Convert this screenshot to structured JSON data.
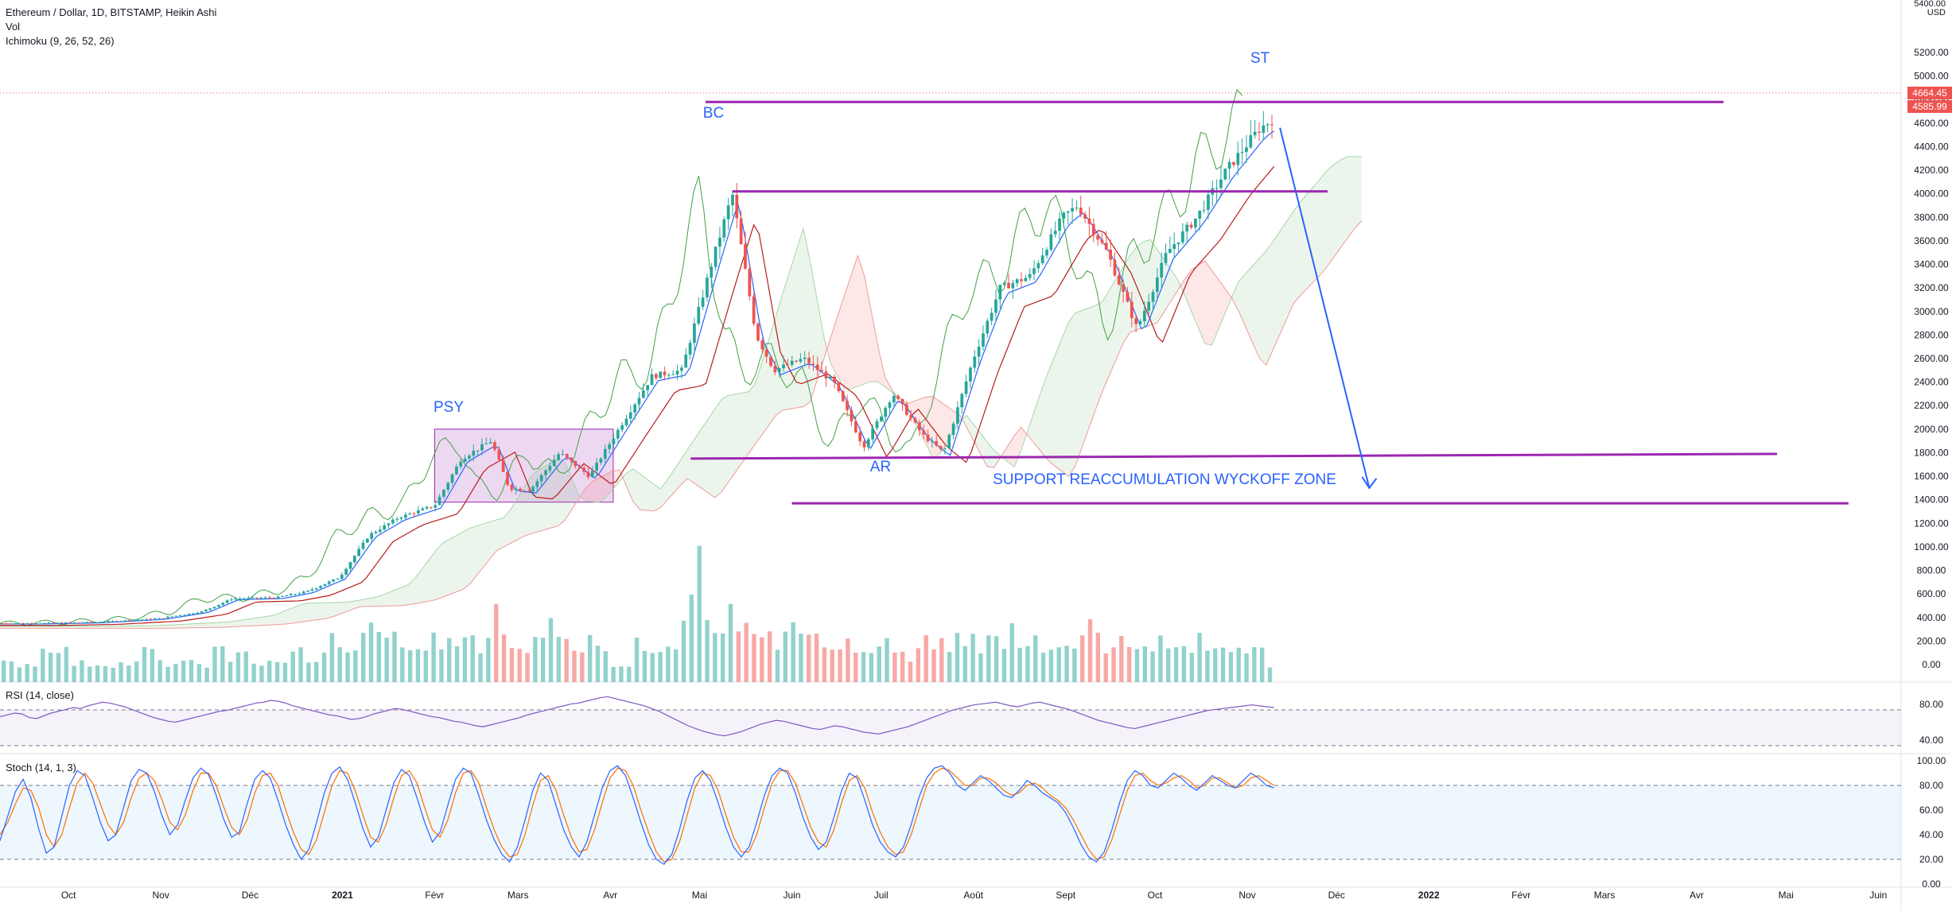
{
  "legend": {
    "symbol": "Ethereum / Dollar, 1D, BITSTAMP, Heikin Ashi",
    "volume": "Vol",
    "ichimoku": "Ichimoku (9, 26, 52, 26)"
  },
  "price_axis": {
    "currency_top": "5400.00",
    "currency": "USD"
  },
  "last_price_tags": [
    "4664.45",
    "4585.99"
  ],
  "rsi": {
    "title": "RSI (14, close)",
    "levels": [
      "80.00",
      "40.00"
    ],
    "values": [
      58,
      60,
      62,
      61,
      57,
      56,
      59,
      62,
      64,
      66,
      68,
      67,
      70,
      72,
      74,
      73,
      71,
      69,
      66,
      63,
      60,
      57,
      55,
      53,
      52,
      54,
      56,
      58,
      60,
      62,
      64,
      65,
      67,
      69,
      71,
      73,
      74,
      76,
      75,
      73,
      70,
      68,
      66,
      64,
      62,
      60,
      59,
      57,
      55,
      56,
      58,
      61,
      63,
      65,
      67,
      66,
      64,
      62,
      60,
      58,
      57,
      55,
      53,
      52,
      50,
      48,
      47,
      49,
      51,
      53,
      55,
      57,
      60,
      62,
      64,
      66,
      68,
      70,
      72,
      73,
      75,
      77,
      79,
      80,
      78,
      76,
      74,
      72,
      70,
      67,
      64,
      60,
      56,
      52,
      48,
      45,
      42,
      40,
      38,
      37,
      39,
      41,
      44,
      47,
      50,
      52,
      54,
      53,
      51,
      49,
      47,
      45,
      44,
      46,
      48,
      47,
      45,
      43,
      41,
      40,
      39,
      41,
      43,
      45,
      47,
      50,
      53,
      56,
      59,
      62,
      65,
      67,
      69,
      71,
      72,
      73,
      74,
      72,
      70,
      69,
      71,
      73,
      74,
      72,
      70,
      68,
      66,
      63,
      60,
      57,
      54,
      52,
      50,
      48,
      46,
      45,
      47,
      49,
      51,
      53,
      55,
      57,
      59,
      61,
      63,
      65,
      66,
      67,
      68,
      69,
      70,
      71,
      70,
      69,
      68
    ]
  },
  "stoch": {
    "title": "Stoch (14, 1, 3)",
    "levels": [
      "100.00",
      "80.00",
      "60.00",
      "40.00",
      "20.00",
      "0.00"
    ],
    "k": [
      35,
      55,
      75,
      85,
      70,
      45,
      25,
      30,
      55,
      80,
      92,
      88,
      70,
      50,
      35,
      40,
      62,
      84,
      93,
      90,
      75,
      55,
      40,
      48,
      68,
      86,
      94,
      89,
      72,
      52,
      38,
      42,
      65,
      85,
      92,
      86,
      68,
      48,
      32,
      20,
      28,
      50,
      74,
      90,
      95,
      85,
      66,
      45,
      30,
      38,
      60,
      82,
      93,
      88,
      70,
      50,
      34,
      42,
      64,
      85,
      94,
      90,
      72,
      52,
      36,
      24,
      18,
      30,
      52,
      76,
      90,
      84,
      64,
      44,
      30,
      22,
      34,
      56,
      78,
      92,
      96,
      88,
      70,
      50,
      32,
      20,
      16,
      24,
      44,
      68,
      86,
      92,
      84,
      66,
      46,
      30,
      22,
      30,
      50,
      72,
      88,
      94,
      90,
      74,
      54,
      38,
      28,
      34,
      54,
      76,
      90,
      86,
      68,
      48,
      34,
      26,
      22,
      30,
      48,
      70,
      86,
      94,
      96,
      90,
      80,
      76,
      82,
      88,
      84,
      78,
      72,
      70,
      76,
      84,
      80,
      74,
      70,
      66,
      58,
      46,
      32,
      22,
      18,
      26,
      44,
      66,
      84,
      92,
      88,
      80,
      78,
      84,
      90,
      86,
      80,
      76,
      82,
      88,
      84,
      80,
      78,
      84,
      90,
      86,
      80,
      78
    ],
    "d": [
      40,
      50,
      65,
      78,
      76,
      62,
      40,
      30,
      40,
      62,
      82,
      90,
      82,
      65,
      48,
      40,
      50,
      70,
      86,
      90,
      84,
      68,
      50,
      44,
      56,
      76,
      90,
      90,
      80,
      62,
      46,
      40,
      52,
      74,
      88,
      90,
      80,
      60,
      42,
      28,
      24,
      36,
      58,
      80,
      92,
      90,
      76,
      56,
      38,
      34,
      48,
      70,
      88,
      92,
      82,
      62,
      44,
      38,
      52,
      74,
      90,
      92,
      82,
      62,
      44,
      30,
      22,
      24,
      40,
      64,
      84,
      88,
      76,
      56,
      38,
      26,
      28,
      44,
      66,
      86,
      94,
      92,
      80,
      60,
      42,
      26,
      18,
      20,
      34,
      56,
      78,
      90,
      88,
      76,
      56,
      38,
      26,
      26,
      40,
      62,
      82,
      92,
      92,
      82,
      64,
      46,
      34,
      30,
      44,
      66,
      84,
      88,
      78,
      58,
      42,
      30,
      24,
      26,
      40,
      60,
      80,
      90,
      94,
      92,
      86,
      80,
      80,
      86,
      86,
      82,
      76,
      72,
      74,
      80,
      82,
      78,
      72,
      68,
      62,
      52,
      40,
      28,
      20,
      22,
      36,
      56,
      76,
      88,
      90,
      84,
      80,
      82,
      86,
      88,
      84,
      78,
      80,
      86,
      86,
      82,
      78,
      80,
      86,
      88,
      84,
      80
    ]
  },
  "time_axis": [
    "Oct",
    "Nov",
    "Déc",
    "2021",
    "Févr",
    "Mars",
    "Avr",
    "Mai",
    "Juin",
    "Juil",
    "Août",
    "Sept",
    "Oct",
    "Nov",
    "Déc",
    "2022",
    "Févr",
    "Mars",
    "Avr",
    "Mai",
    "Juin"
  ],
  "annotations": {
    "psy": "PSY",
    "bc": "BC",
    "ar": "AR",
    "st": "ST",
    "zone": "SUPPORT REACCUMULATION WYCKOFF ZONE"
  },
  "colors": {
    "bull": "#26a69a",
    "bear": "#ef5350",
    "annotation_line": "#9c27b0",
    "arrow": "#2962ff",
    "rsi_line": "#7e57c2",
    "stoch_k": "#2962ff",
    "stoch_d": "#ff6d00"
  },
  "chart_data": {
    "type": "candlestick",
    "x_range": [
      "2020-09-20",
      "2022-06-10"
    ],
    "price_axis_ticks": [
      5200,
      5000,
      4800,
      4600,
      4400,
      4200,
      4000,
      3800,
      3600,
      3400,
      3200,
      3000,
      2800,
      2600,
      2400,
      2200,
      2000,
      1800,
      1600,
      1400,
      1200,
      1000,
      800,
      600,
      400,
      200,
      0
    ],
    "ylim": [
      0,
      5450
    ],
    "close_path": [
      [
        "2020-09-20",
        350
      ],
      [
        "2020-10-10",
        360
      ],
      [
        "2020-10-31",
        390
      ],
      [
        "2020-11-15",
        450
      ],
      [
        "2020-11-25",
        560
      ],
      [
        "2020-12-10",
        570
      ],
      [
        "2020-12-20",
        620
      ],
      [
        "2020-12-31",
        740
      ],
      [
        "2021-01-10",
        1100
      ],
      [
        "2021-01-20",
        1250
      ],
      [
        "2021-02-01",
        1350
      ],
      [
        "2021-02-10",
        1750
      ],
      [
        "2021-02-20",
        1900
      ],
      [
        "2021-02-26",
        1500
      ],
      [
        "2021-03-05",
        1480
      ],
      [
        "2021-03-15",
        1800
      ],
      [
        "2021-03-25",
        1600
      ],
      [
        "2021-04-05",
        2050
      ],
      [
        "2021-04-15",
        2450
      ],
      [
        "2021-04-25",
        2500
      ],
      [
        "2021-05-05",
        3400
      ],
      [
        "2021-05-12",
        4000
      ],
      [
        "2021-05-20",
        2800
      ],
      [
        "2021-05-26",
        2500
      ],
      [
        "2021-06-05",
        2600
      ],
      [
        "2021-06-15",
        2400
      ],
      [
        "2021-06-25",
        1850
      ],
      [
        "2021-07-05",
        2300
      ],
      [
        "2021-07-15",
        1950
      ],
      [
        "2021-07-22",
        1800
      ],
      [
        "2021-08-01",
        2600
      ],
      [
        "2021-08-10",
        3200
      ],
      [
        "2021-08-20",
        3300
      ],
      [
        "2021-08-31",
        3800
      ],
      [
        "2021-09-05",
        3900
      ],
      [
        "2021-09-15",
        3500
      ],
      [
        "2021-09-25",
        2850
      ],
      [
        "2021-10-05",
        3500
      ],
      [
        "2021-10-15",
        3800
      ],
      [
        "2021-10-25",
        4200
      ],
      [
        "2021-11-05",
        4550
      ],
      [
        "2021-11-10",
        4640
      ]
    ],
    "volume": [
      1,
      1,
      1,
      1,
      1,
      2,
      2,
      2,
      2,
      1,
      1,
      1,
      1,
      1,
      1,
      1,
      1,
      1,
      2,
      2,
      1,
      1,
      1,
      1,
      1,
      1,
      1,
      2,
      2,
      1,
      2,
      2,
      1,
      1,
      1,
      1,
      1,
      2,
      2,
      1,
      1,
      2,
      3,
      2,
      2,
      2,
      3,
      4,
      3,
      3,
      3,
      2,
      2,
      2,
      2,
      3,
      2,
      3,
      2,
      3,
      3,
      2,
      3,
      5,
      3,
      2,
      2,
      2,
      3,
      3,
      4,
      3,
      3,
      2,
      2,
      3,
      2,
      2,
      1,
      1,
      1,
      3,
      2,
      2,
      2,
      2,
      2,
      4,
      6,
      9,
      4,
      3,
      3,
      5,
      3,
      4,
      3,
      3,
      3,
      2,
      3,
      4,
      3,
      3,
      3,
      2,
      2,
      2,
      3,
      2,
      2,
      2,
      2,
      3,
      2,
      2,
      1,
      2,
      3,
      2,
      3,
      2,
      3,
      2,
      3,
      2,
      3,
      3,
      2,
      4,
      2,
      2,
      3,
      2,
      2,
      2,
      2,
      2,
      3,
      4,
      3,
      2,
      2,
      3,
      2,
      2,
      2,
      2,
      3,
      2,
      2,
      2,
      2,
      3,
      2,
      2,
      2,
      2,
      2,
      2,
      2,
      2,
      1
    ],
    "levels": [
      {
        "from": "2021-05-03",
        "to": "2022-04-10",
        "price": 4780
      },
      {
        "from": "2021-05-12",
        "to": "2021-11-28",
        "price": 4020
      },
      {
        "from": "2021-04-28",
        "to": "2022-04-28",
        "price": 1750,
        "end_price": 1790
      },
      {
        "from": "2021-06-01",
        "to": "2022-05-22",
        "price": 1370
      }
    ],
    "psy_box": {
      "from": "2021-02-01",
      "to": "2021-04-02",
      "top": 2000,
      "bottom": 1380
    },
    "arrow": {
      "from": [
        "2021-11-12",
        4560
      ],
      "to": [
        "2021-12-12",
        1500
      ]
    }
  }
}
